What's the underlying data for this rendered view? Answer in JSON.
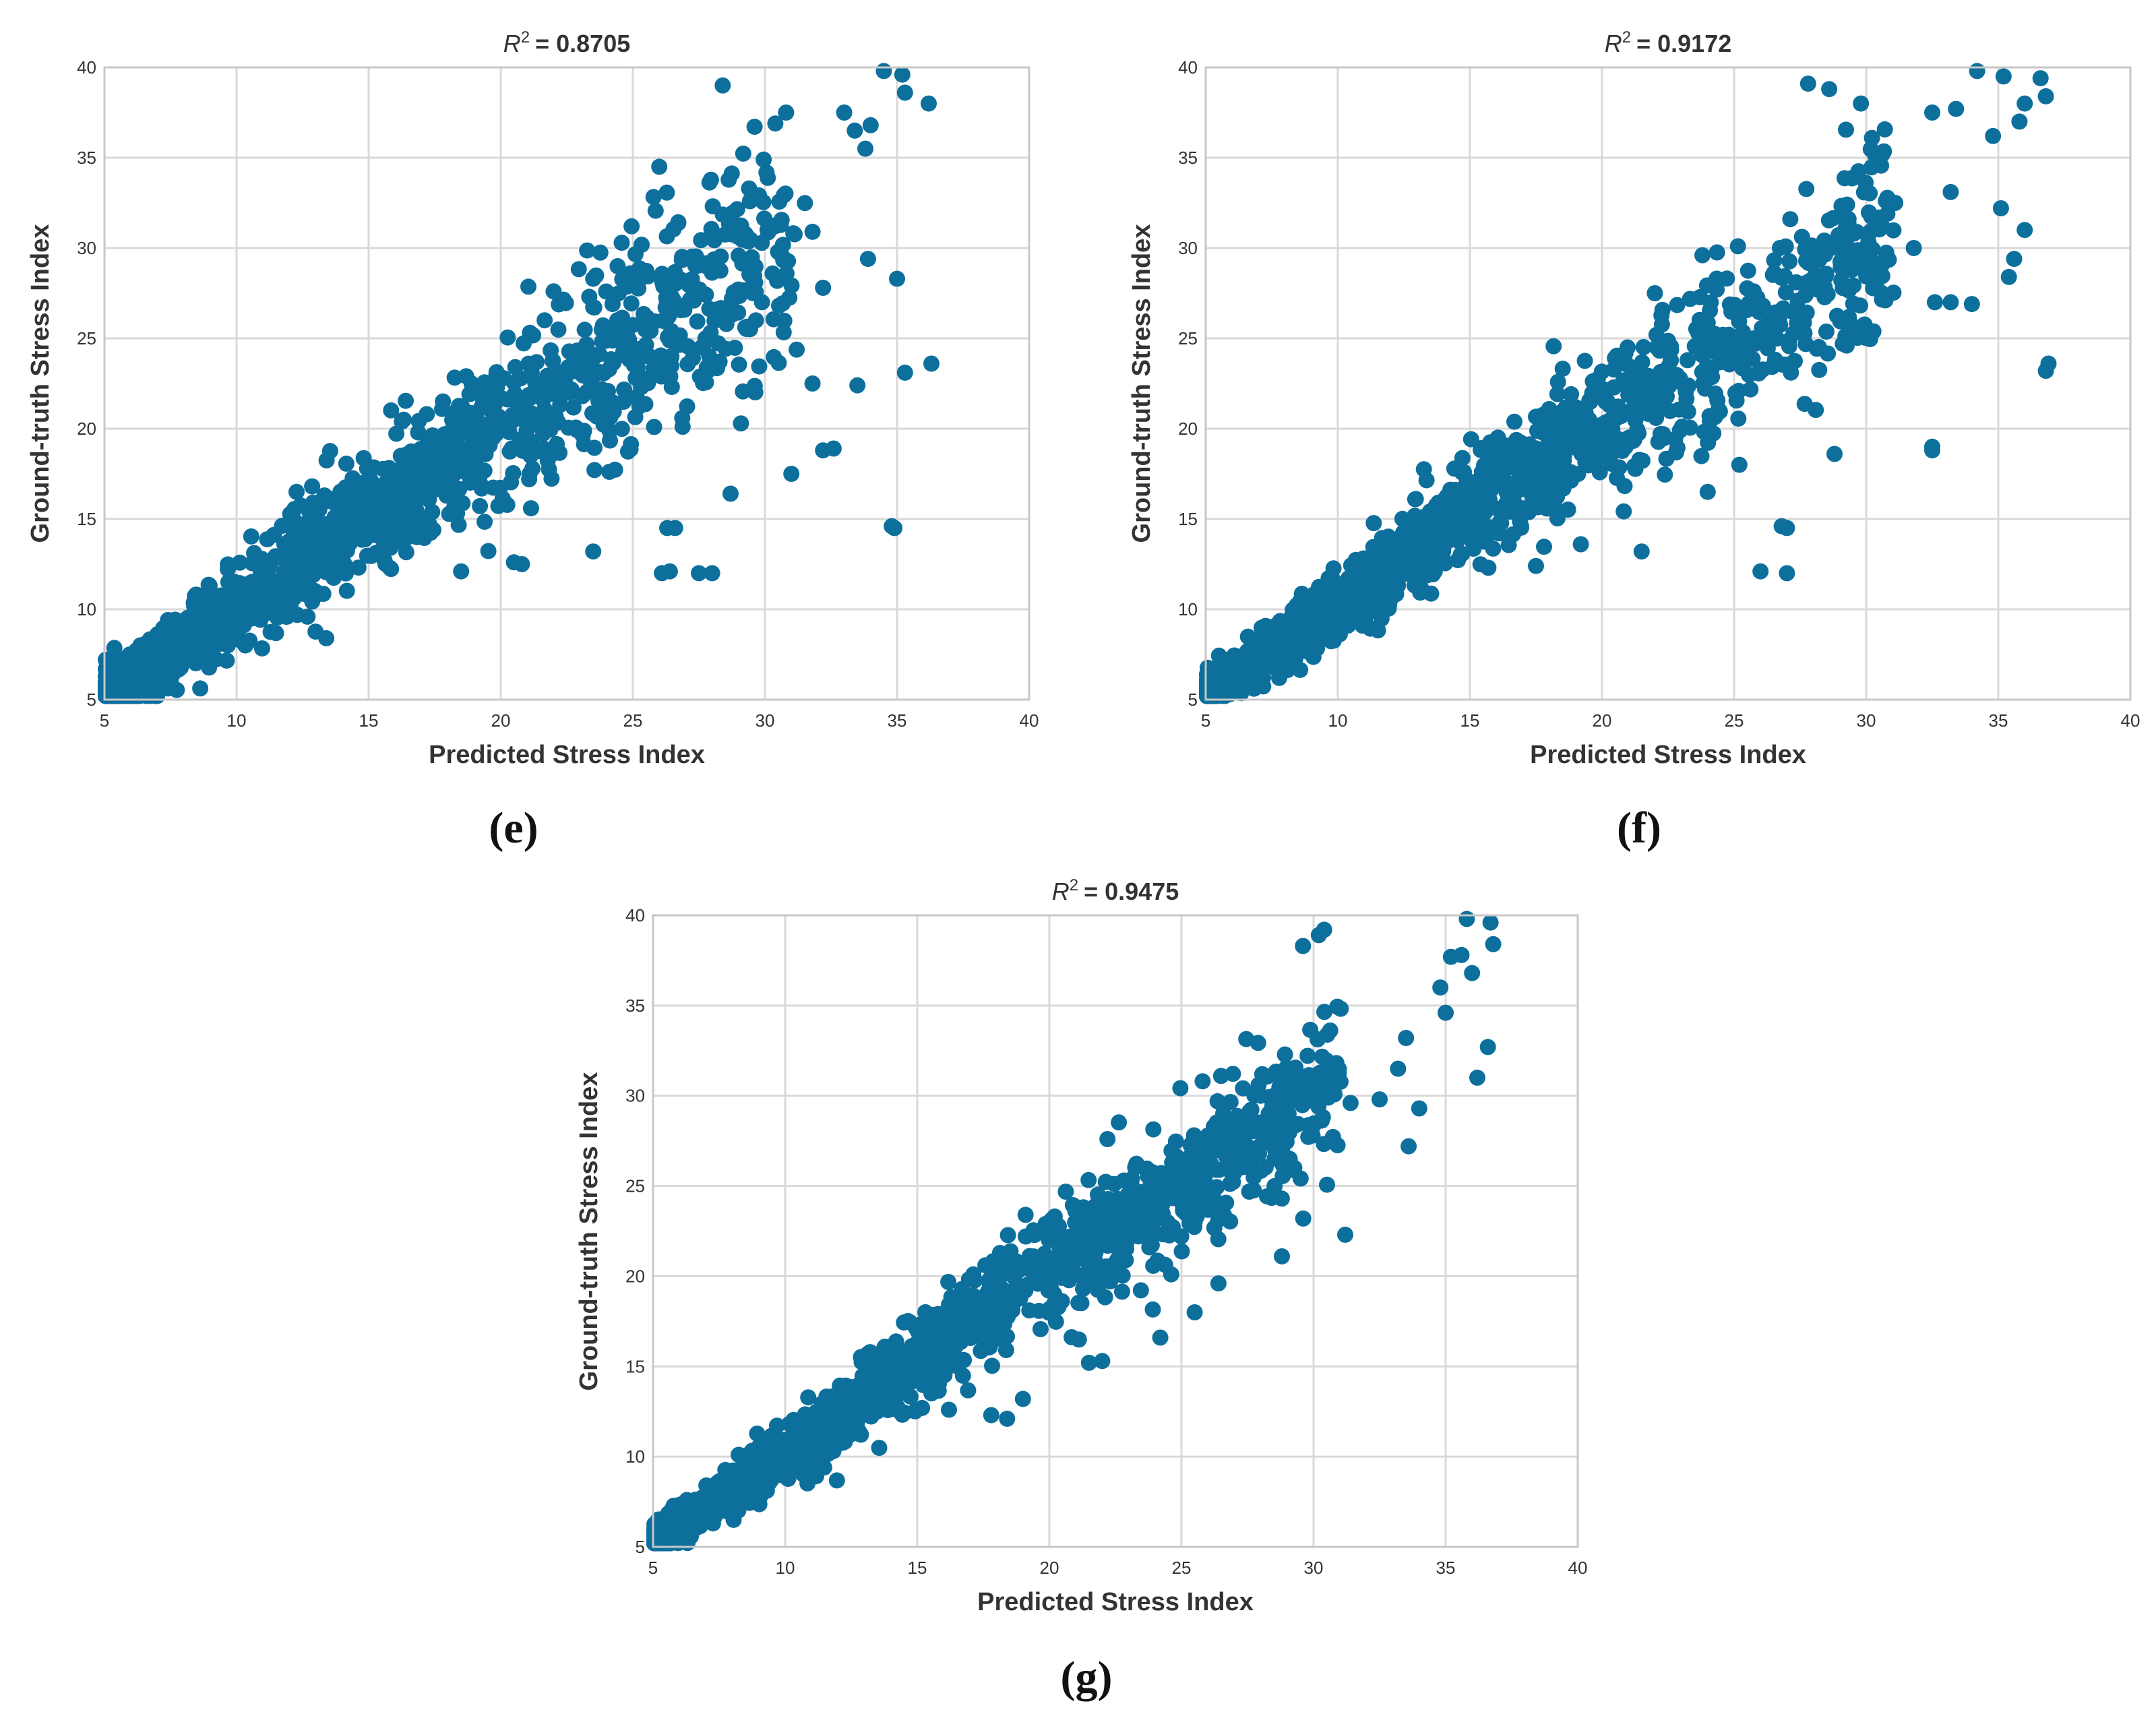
{
  "figure": {
    "panels": [
      "(e)",
      "(f)",
      "(g)"
    ]
  },
  "colors": {
    "marker": "#0d6f9c",
    "grid": "#d9d9d9",
    "frame": "#c7c7c7",
    "text": "#333333"
  },
  "chart_data": [
    {
      "panel": "e",
      "type": "scatter",
      "title_symbol": "R",
      "title_exponent": "2",
      "title_value": "= 0.8705",
      "xlabel": "Predicted Stress Index",
      "ylabel": "Ground-truth Stress Index",
      "xlim": [
        5,
        40
      ],
      "ylim": [
        5,
        40
      ],
      "xticks": [
        5,
        10,
        15,
        20,
        25,
        30,
        35,
        40
      ],
      "yticks": [
        5,
        10,
        15,
        20,
        25,
        30,
        35,
        40
      ],
      "grid": true,
      "n_points": 1500,
      "r2": 0.8705,
      "spread_base": 0.7,
      "spread_slope": 0.11,
      "outliers": [
        [
          34.9,
          14.5
        ],
        [
          34.8,
          14.6
        ],
        [
          32.2,
          18.8
        ],
        [
          32.6,
          18.9
        ],
        [
          31.0,
          17.5
        ],
        [
          26.1,
          12.0
        ],
        [
          26.4,
          12.1
        ],
        [
          27.5,
          12.0
        ],
        [
          28.0,
          12.0
        ],
        [
          23.5,
          13.2
        ],
        [
          26.3,
          14.5
        ],
        [
          26.6,
          14.5
        ],
        [
          35.3,
          23.1
        ],
        [
          36.3,
          23.6
        ],
        [
          31.8,
          22.5
        ],
        [
          28.7,
          16.4
        ],
        [
          33.5,
          22.4
        ],
        [
          35.0,
          28.3
        ],
        [
          32.2,
          27.8
        ],
        [
          33.8,
          35.5
        ],
        [
          35.3,
          38.6
        ],
        [
          36.2,
          38.0
        ],
        [
          33.0,
          37.5
        ],
        [
          34.5,
          39.8
        ],
        [
          35.2,
          39.6
        ],
        [
          30.8,
          37.5
        ],
        [
          33.4,
          36.5
        ],
        [
          29.4,
          33.3
        ],
        [
          30.1,
          31.0
        ],
        [
          31.8,
          30.9
        ],
        [
          34.0,
          36.8
        ],
        [
          28.4,
          39.0
        ],
        [
          22.0,
          27.6
        ],
        [
          23.5,
          28.3
        ],
        [
          20.8,
          12.5
        ],
        [
          20.5,
          12.6
        ],
        [
          15.8,
          12.3
        ],
        [
          18.5,
          12.1
        ],
        [
          26.0,
          34.5
        ],
        [
          33.9,
          29.4
        ]
      ]
    },
    {
      "panel": "f",
      "type": "scatter",
      "title_symbol": "R",
      "title_exponent": "2",
      "title_value": "= 0.9172",
      "xlabel": "Predicted Stress Index",
      "ylabel": "Ground-truth Stress Index",
      "xlim": [
        5,
        40
      ],
      "ylim": [
        5,
        40
      ],
      "xticks": [
        5,
        10,
        15,
        20,
        25,
        30,
        35,
        40
      ],
      "yticks": [
        5,
        10,
        15,
        20,
        25,
        30,
        35,
        40
      ],
      "grid": true,
      "n_points": 1500,
      "r2": 0.9172,
      "spread_base": 0.55,
      "spread_slope": 0.085,
      "outliers": [
        [
          36.8,
          23.2
        ],
        [
          36.9,
          23.6
        ],
        [
          32.5,
          18.8
        ],
        [
          32.5,
          19.0
        ],
        [
          27.0,
          12.0
        ],
        [
          26.0,
          12.1
        ],
        [
          27.0,
          14.5
        ],
        [
          26.8,
          14.6
        ],
        [
          28.8,
          18.6
        ],
        [
          25.2,
          18.0
        ],
        [
          21.5,
          13.2
        ],
        [
          19.2,
          13.6
        ],
        [
          24.0,
          16.5
        ],
        [
          35.6,
          29.4
        ],
        [
          35.4,
          28.4
        ],
        [
          36.0,
          31.0
        ],
        [
          33.2,
          27.0
        ],
        [
          34.0,
          26.9
        ],
        [
          32.6,
          27.0
        ],
        [
          32.5,
          37.5
        ],
        [
          33.4,
          37.7
        ],
        [
          36.0,
          38.0
        ],
        [
          36.6,
          39.4
        ],
        [
          36.8,
          38.4
        ],
        [
          35.2,
          39.5
        ],
        [
          35.8,
          37.0
        ],
        [
          34.2,
          39.8
        ],
        [
          30.8,
          31.9
        ],
        [
          31.8,
          30.0
        ],
        [
          33.2,
          33.1
        ],
        [
          34.8,
          36.2
        ],
        [
          35.1,
          32.2
        ],
        [
          28.6,
          38.8
        ],
        [
          27.8,
          39.1
        ],
        [
          29.8,
          38.0
        ],
        [
          22.0,
          27.5
        ],
        [
          23.8,
          29.6
        ],
        [
          17.5,
          12.4
        ],
        [
          15.7,
          12.3
        ],
        [
          31.1,
          32.5
        ]
      ]
    },
    {
      "panel": "g",
      "type": "scatter",
      "title_symbol": "R",
      "title_exponent": "2",
      "title_value": "= 0.9475",
      "xlabel": "Predicted Stress Index",
      "ylabel": "Ground-truth Stress Index",
      "xlim": [
        5,
        40
      ],
      "ylim": [
        5,
        40
      ],
      "xticks": [
        5,
        10,
        15,
        20,
        25,
        30,
        35,
        40
      ],
      "yticks": [
        5,
        10,
        15,
        20,
        25,
        30,
        35,
        40
      ],
      "grid": true,
      "n_points": 1500,
      "r2": 0.9475,
      "spread_base": 0.45,
      "spread_slope": 0.07,
      "outliers": [
        [
          31.2,
          22.3
        ],
        [
          28.8,
          21.1
        ],
        [
          24.2,
          16.6
        ],
        [
          22.0,
          15.3
        ],
        [
          21.5,
          15.2
        ],
        [
          19.0,
          13.2
        ],
        [
          17.8,
          12.3
        ],
        [
          18.4,
          12.1
        ],
        [
          16.2,
          12.6
        ],
        [
          26.4,
          19.6
        ],
        [
          25.5,
          18.0
        ],
        [
          36.2,
          31.0
        ],
        [
          36.6,
          32.7
        ],
        [
          33.6,
          27.2
        ],
        [
          34.0,
          29.3
        ],
        [
          33.5,
          33.2
        ],
        [
          35.0,
          34.6
        ],
        [
          34.8,
          36.0
        ],
        [
          36.0,
          36.8
        ],
        [
          36.8,
          38.4
        ],
        [
          35.6,
          37.8
        ],
        [
          36.7,
          39.6
        ],
        [
          35.8,
          39.8
        ],
        [
          35.2,
          37.7
        ],
        [
          30.2,
          38.9
        ],
        [
          29.6,
          38.3
        ],
        [
          30.4,
          39.2
        ],
        [
          32.5,
          29.8
        ],
        [
          31.4,
          29.6
        ],
        [
          33.2,
          31.5
        ],
        [
          26.5,
          31.1
        ],
        [
          28.0,
          30.0
        ],
        [
          25.8,
          30.8
        ],
        [
          19.1,
          23.4
        ],
        [
          22.2,
          27.6
        ]
      ]
    }
  ]
}
